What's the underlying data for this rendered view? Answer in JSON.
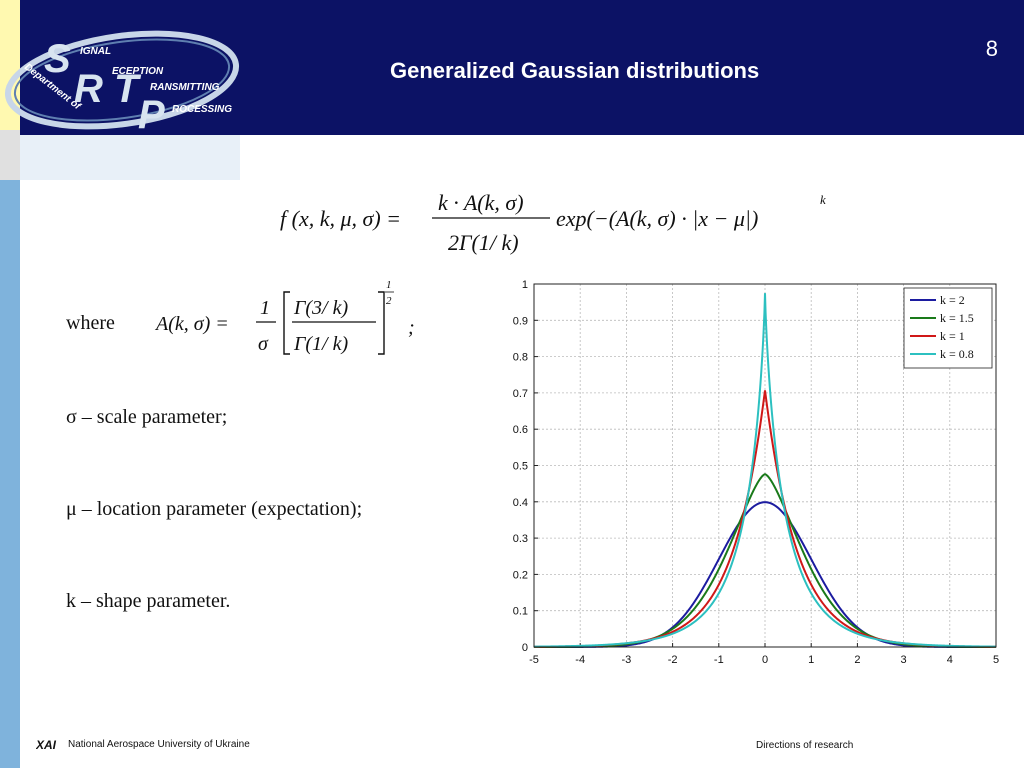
{
  "slide": {
    "title": "Generalized Gaussian distributions",
    "number": "8"
  },
  "logo": {
    "big_letters": [
      "S",
      "R",
      "T",
      "P"
    ],
    "words": [
      "IGNAL",
      "ECEPTION",
      "RANSMITTING",
      "ROCESSING"
    ],
    "arc_text": "Department of"
  },
  "formula": {
    "f_lhs": "f (x, k, μ, σ) =",
    "f_num": "k · A(k, σ)",
    "f_den": "2Γ(1/ k)",
    "f_exp": "exp(−(A(k, σ) · |x − μ|)",
    "f_power": "k",
    "where_label": "where",
    "a_lhs": "A(k, σ) =",
    "a_frac_num": "1",
    "a_frac_den": "σ",
    "a_inner_num": "Γ(3/ k)",
    "a_inner_den": "Γ(1/ k)",
    "a_power_num": "1",
    "a_power_den": "2",
    "a_semicolon": ";"
  },
  "bullets": [
    "σ – scale parameter;",
    "μ – location parameter (expectation);",
    "k – shape parameter."
  ],
  "chart_data": {
    "type": "line",
    "x_range": [
      -5,
      5
    ],
    "ylim": [
      0,
      1
    ],
    "x_ticks": [
      "-5",
      "-4",
      "-3",
      "-2",
      "-1",
      "0",
      "1",
      "2",
      "3",
      "4",
      "5"
    ],
    "y_ticks": [
      "0",
      "0.1",
      "0.2",
      "0.3",
      "0.4",
      "0.5",
      "0.6",
      "0.7",
      "0.8",
      "0.9",
      "1"
    ],
    "grid": true,
    "legend_position": "top-right",
    "series": [
      {
        "name": "k = 2",
        "k": 2,
        "color": "#1c1ca0"
      },
      {
        "name": "k = 1.5",
        "k": 1.5,
        "color": "#1a7a1a"
      },
      {
        "name": "k = 1",
        "k": 1,
        "color": "#d01818"
      },
      {
        "name": "k = 0.8",
        "k": 0.8,
        "color": "#2cc0c0"
      }
    ]
  },
  "footer": {
    "left_logo": "XAI",
    "left_text": "National Aerospace University of Ukraine",
    "right_text": "Directions of research"
  },
  "colors": {
    "header": "#0c1265",
    "sidebar_yellow": "#fff9b0",
    "sidebar_blue": "#7fb3dc"
  }
}
